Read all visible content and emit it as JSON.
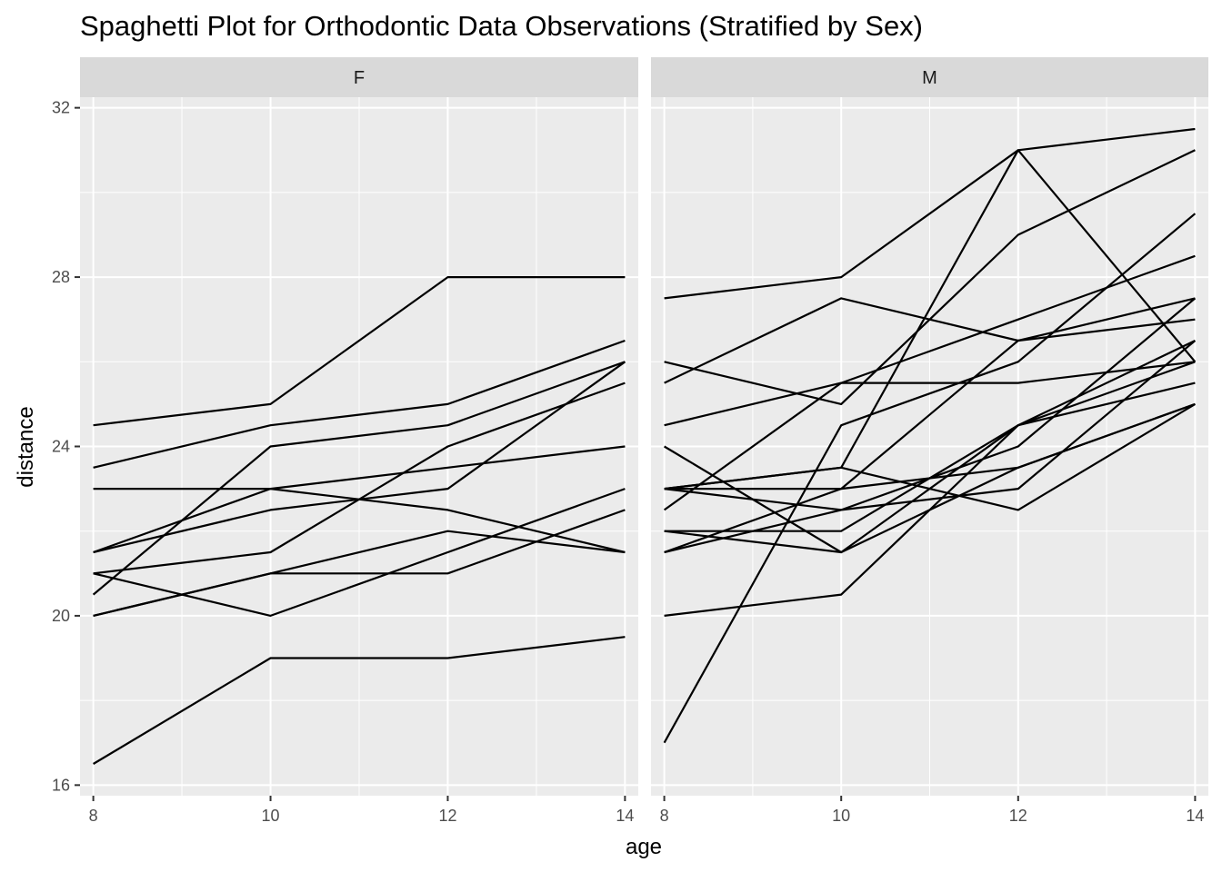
{
  "chart_data": {
    "type": "line",
    "title": "Spaghetti Plot for Orthodontic Data Observations (Stratified by Sex)",
    "xlabel": "age",
    "ylabel": "distance",
    "x": [
      8,
      10,
      12,
      14
    ],
    "xticks": [
      "8",
      "10",
      "12",
      "14"
    ],
    "yticks": [
      "16",
      "20",
      "24",
      "28",
      "32"
    ],
    "xlim": [
      7.85,
      14.15
    ],
    "ylim": [
      15.75,
      32.25
    ],
    "grid": true,
    "legend": "none",
    "line_color": "#000000",
    "panels": [
      {
        "strip": "F",
        "series": [
          {
            "values": [
              24.5,
              25.0,
              28.0,
              28.0
            ]
          },
          {
            "values": [
              23.5,
              24.5,
              25.0,
              26.5
            ]
          },
          {
            "values": [
              23.0,
              23.0,
              22.5,
              21.5
            ]
          },
          {
            "values": [
              21.5,
              23.0,
              23.5,
              24.0
            ]
          },
          {
            "values": [
              21.5,
              22.5,
              23.0,
              26.0
            ]
          },
          {
            "values": [
              21.0,
              21.5,
              24.0,
              25.5
            ]
          },
          {
            "values": [
              21.0,
              20.0,
              21.5,
              23.0
            ]
          },
          {
            "values": [
              20.5,
              24.0,
              24.5,
              26.0
            ]
          },
          {
            "values": [
              20.0,
              21.0,
              21.0,
              22.5
            ]
          },
          {
            "values": [
              20.0,
              21.0,
              22.0,
              21.5
            ]
          },
          {
            "values": [
              16.5,
              19.0,
              19.0,
              19.5
            ]
          }
        ]
      },
      {
        "strip": "M",
        "series": [
          {
            "values": [
              27.5,
              28.0,
              31.0,
              31.5
            ]
          },
          {
            "values": [
              26.0,
              25.0,
              29.0,
              31.0
            ]
          },
          {
            "values": [
              25.5,
              27.5,
              26.5,
              27.0
            ]
          },
          {
            "values": [
              24.5,
              25.5,
              27.0,
              28.5
            ]
          },
          {
            "values": [
              24.0,
              21.5,
              24.5,
              25.5
            ]
          },
          {
            "values": [
              23.0,
              22.5,
              24.0,
              27.5
            ]
          },
          {
            "values": [
              23.0,
              23.0,
              23.5,
              25.0
            ]
          },
          {
            "values": [
              23.0,
              23.5,
              22.5,
              25.0
            ]
          },
          {
            "values": [
              22.5,
              25.5,
              25.5,
              26.0
            ]
          },
          {
            "values": [
              22.0,
              22.0,
              24.5,
              26.5
            ]
          },
          {
            "values": [
              22.0,
              21.5,
              23.5,
              25.0
            ]
          },
          {
            "values": [
              21.5,
              22.5,
              23.0,
              26.5
            ]
          },
          {
            "values": [
              21.5,
              23.0,
              26.5,
              27.5
            ]
          },
          {
            "values": [
              20.0,
              20.5,
              24.5,
              26.0
            ]
          },
          {
            "values": [
              17.0,
              24.5,
              26.0,
              29.5
            ]
          },
          {
            "values": [
              23.0,
              23.5,
              31.0,
              26.0
            ]
          }
        ]
      }
    ]
  }
}
